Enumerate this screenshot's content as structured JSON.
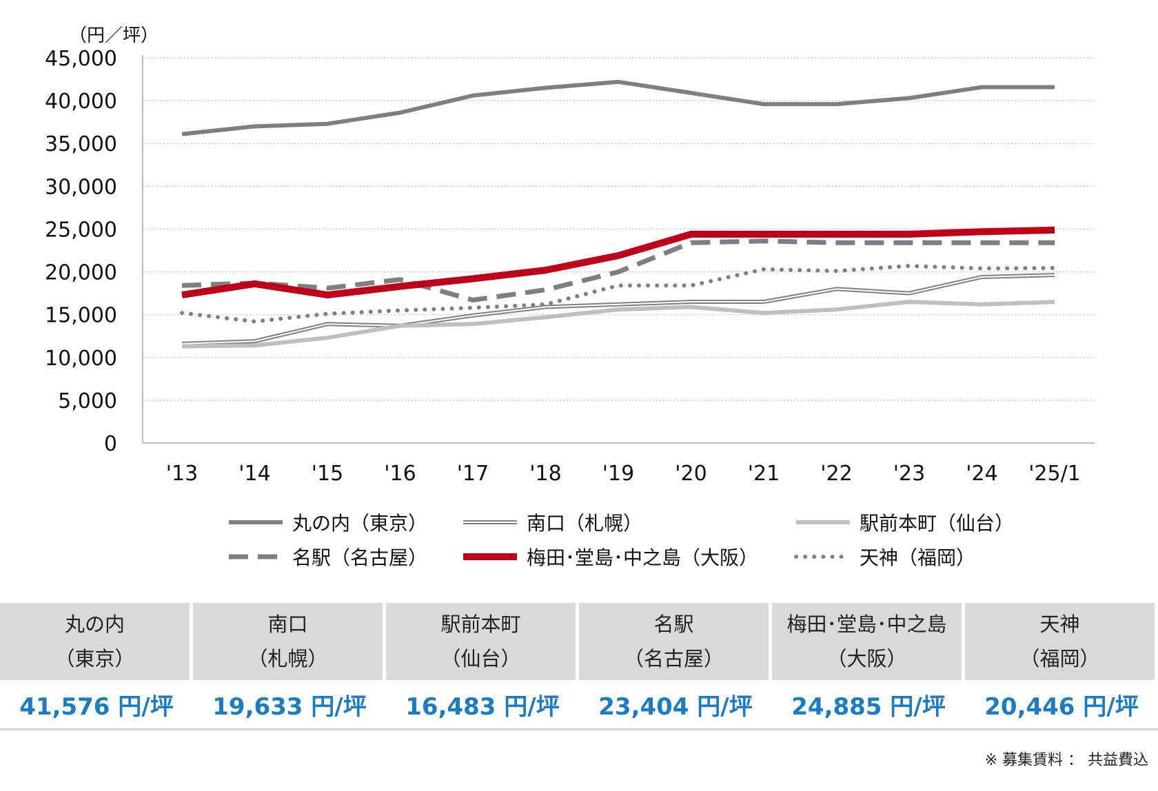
{
  "chart_data": {
    "type": "line",
    "unit_label": "（円／坪）",
    "ylim": [
      0,
      45000
    ],
    "y_ticks": [
      "45,000",
      "40,000",
      "35,000",
      "30,000",
      "25,000",
      "20,000",
      "15,000",
      "10,000",
      "5,000",
      "0"
    ],
    "categories": [
      "'13",
      "'14",
      "'15",
      "'16",
      "'17",
      "'18",
      "'19",
      "'20",
      "'21",
      "'22",
      "'23",
      "'24",
      "'25/1"
    ],
    "grid": true,
    "legend_position": "bottom",
    "series": [
      {
        "name": "丸の内（東京）",
        "color": "#7f7f7f",
        "style": "solid-thick",
        "values": [
          36100,
          37000,
          37300,
          38600,
          40600,
          41500,
          42200,
          40900,
          39600,
          39600,
          40300,
          41576,
          41576
        ]
      },
      {
        "name": "南口（札幌）",
        "color": "#7f7f7f",
        "style": "double",
        "values": [
          11600,
          11900,
          13900,
          13700,
          14900,
          15900,
          16200,
          16500,
          16500,
          18000,
          17500,
          19400,
          19633
        ]
      },
      {
        "name": "駅前本町（仙台）",
        "color": "#bfbfbf",
        "style": "solid-thick",
        "values": [
          11300,
          11400,
          12300,
          13700,
          13900,
          14700,
          15600,
          15900,
          15200,
          15600,
          16500,
          16200,
          16483
        ]
      },
      {
        "name": "名駅（名古屋）",
        "color": "#7f7f7f",
        "style": "dashed",
        "values": [
          18400,
          18700,
          18100,
          19100,
          16700,
          17900,
          20000,
          23400,
          23600,
          23400,
          23400,
          23404,
          23404
        ]
      },
      {
        "name": "梅田･堂島･中之島（大阪）",
        "color": "#c00018",
        "style": "solid-heavy",
        "values": [
          17300,
          18600,
          17300,
          18300,
          19200,
          20200,
          21900,
          24400,
          24400,
          24400,
          24400,
          24700,
          24885
        ]
      },
      {
        "name": "天神（福岡）",
        "color": "#808080",
        "style": "dotted",
        "values": [
          15200,
          14200,
          15100,
          15500,
          15800,
          16200,
          18400,
          18400,
          20300,
          20100,
          20700,
          20400,
          20446
        ]
      }
    ]
  },
  "summary": [
    {
      "name": "丸の内",
      "region": "（東京）",
      "value": "41,576 円/坪"
    },
    {
      "name": "南口",
      "region": "（札幌）",
      "value": "19,633 円/坪"
    },
    {
      "name": "駅前本町",
      "region": "（仙台）",
      "value": "16,483 円/坪"
    },
    {
      "name": "名駅",
      "region": "（名古屋）",
      "value": "23,404 円/坪"
    },
    {
      "name": "梅田･堂島･中之島",
      "region": "（大阪）",
      "value": "24,885 円/坪"
    },
    {
      "name": "天神",
      "region": "（福岡）",
      "value": "20,446 円/坪"
    }
  ],
  "note": "※ 募集賃料 ： 共益費込",
  "colors": {
    "value_text": "#1a7cc4",
    "header_bg": "#d9d9d9",
    "grid": "#c8c8c8"
  }
}
